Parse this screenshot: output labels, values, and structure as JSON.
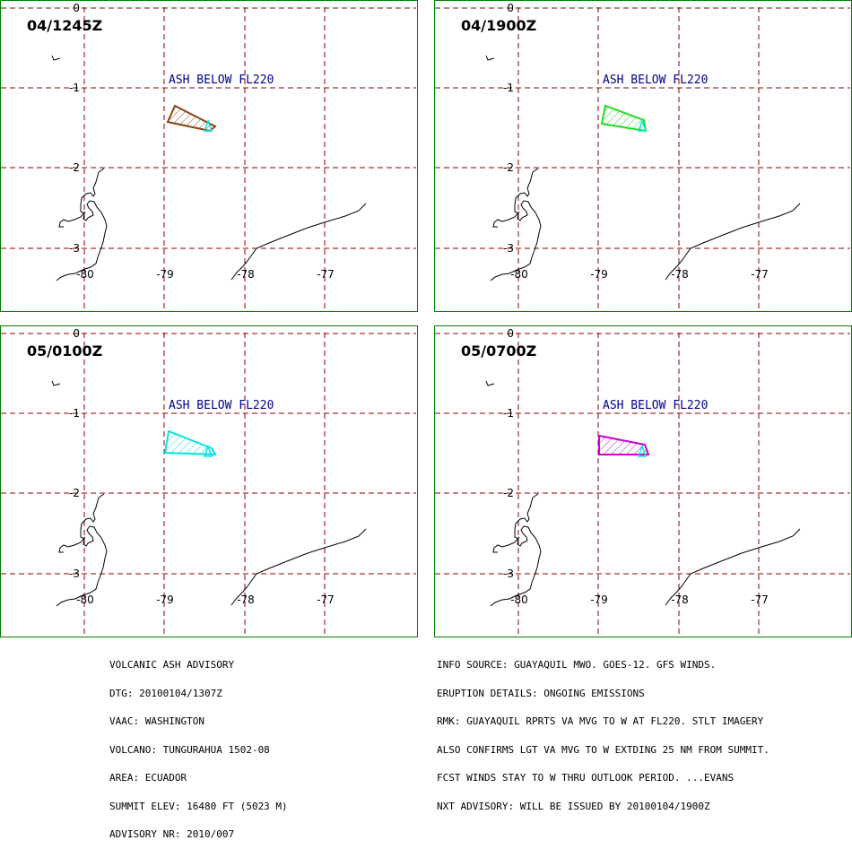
{
  "panels": [
    {
      "time_label": "04/1245Z",
      "ash_label": "ASH BELOW FL220",
      "polygon_color": "#8b4513"
    },
    {
      "time_label": "04/1900Z",
      "ash_label": "ASH BELOW FL220",
      "polygon_color": "#22dd22"
    },
    {
      "time_label": "05/0100Z",
      "ash_label": "ASH BELOW FL220",
      "polygon_color": "#00e5e5"
    },
    {
      "time_label": "05/0700Z",
      "ash_label": "ASH BELOW FL220",
      "polygon_color": "#cc00cc"
    }
  ],
  "grid_labels": {
    "lat": [
      "0",
      "-1",
      "-2",
      "-3"
    ],
    "lon": [
      "-80",
      "-79",
      "-78",
      "-77"
    ]
  },
  "colors": {
    "grid": "#8b0000",
    "panel_border": "#008000",
    "ash_label": "#00008b",
    "volcano_marker": "#00e5e5",
    "coastline": "#000000"
  },
  "advisory": {
    "lines": [
      "VOLCANIC ASH ADVISORY",
      "DTG: 20100104/1307Z",
      "VAAC: WASHINGTON",
      "VOLCANO: TUNGURAHUA 1502-08",
      "AREA: ECUADOR",
      "SUMMIT ELEV: 16480 FT (5023 M)",
      "ADVISORY NR: 2010/007"
    ]
  },
  "info": {
    "lines": [
      "INFO SOURCE: GUAYAQUIL MWO. GOES-12. GFS WINDS.",
      "ERUPTION DETAILS: ONGOING EMISSIONS",
      "RMK: GUAYAQUIL RPRTS VA MVG TO W AT FL220. STLT IMAGERY",
      "ALSO CONFIRMS LGT VA MVG TO W EXTDING 25 NM FROM SUMMIT.",
      "FCST WINDS STAY TO W THRU OUTLOOK PERIOD. ...EVANS",
      "NXT ADVISORY: WILL BE ISSUED BY 20100104/1900Z"
    ]
  }
}
